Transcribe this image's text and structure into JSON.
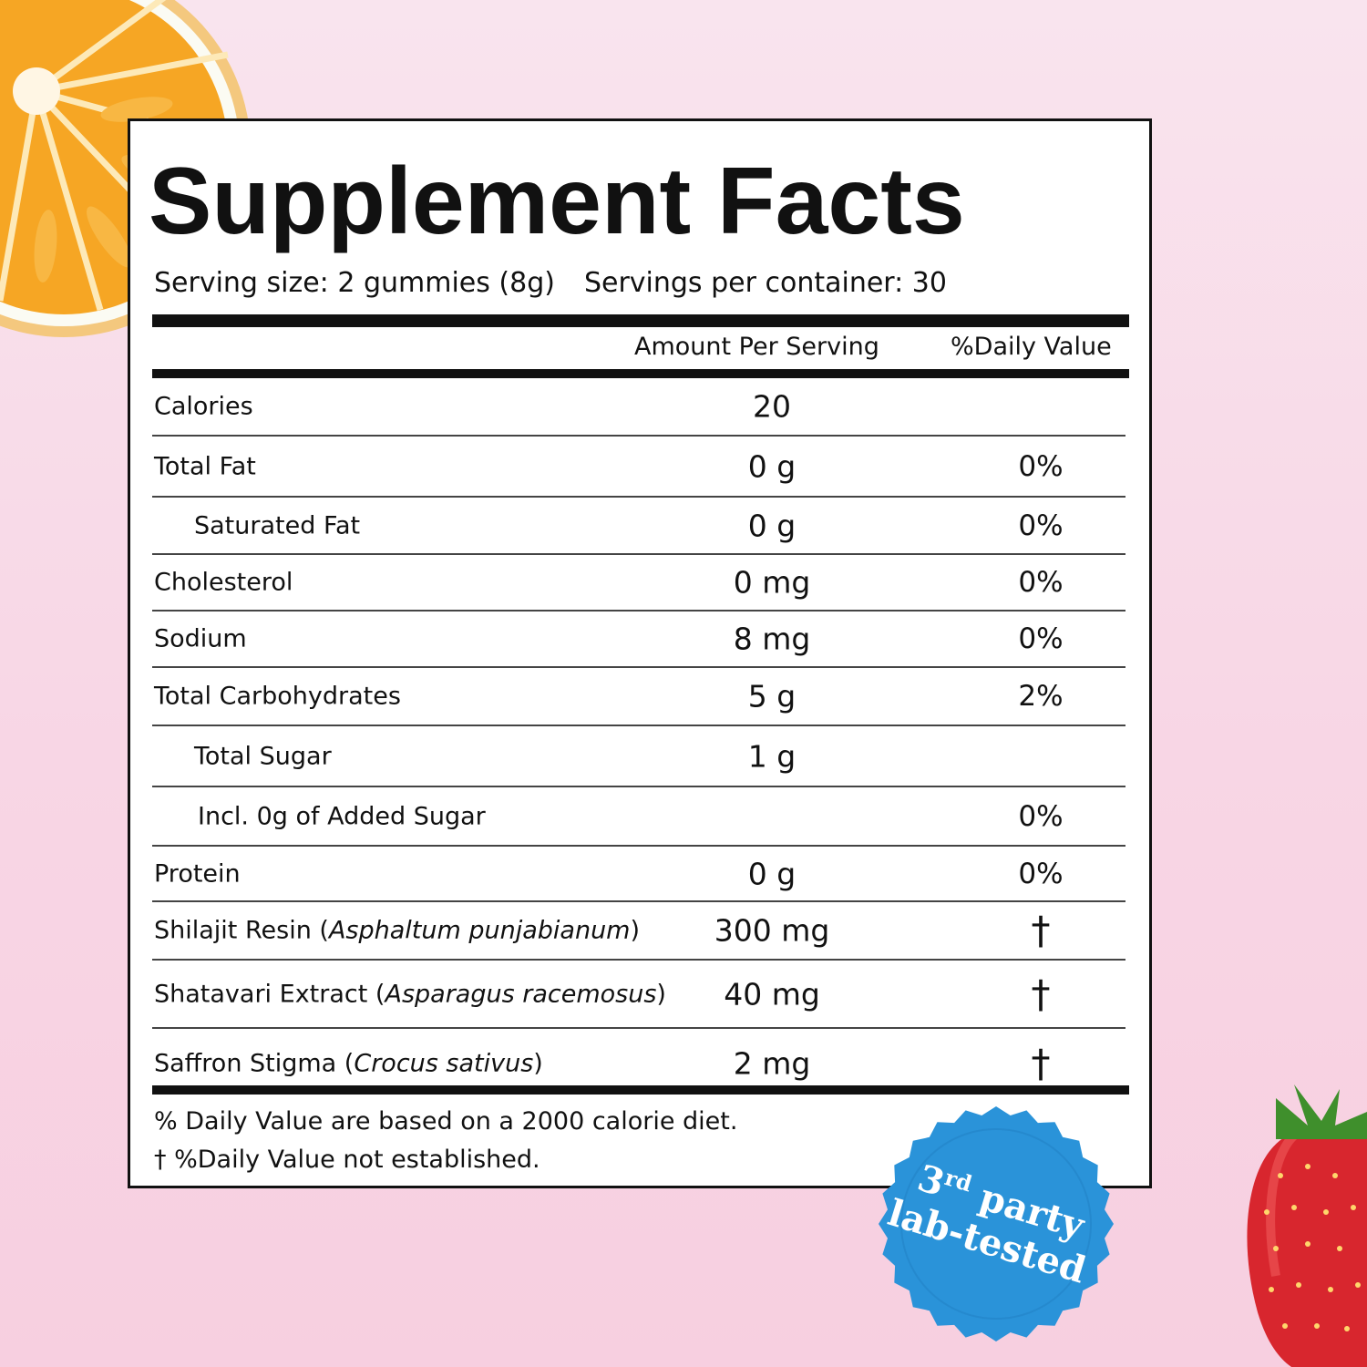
{
  "label": {
    "title": "Supplement Facts",
    "serving_size": "Serving size: 2 gummies (8g)",
    "servings_per_container": "Servings per container: 30",
    "col_amount": "Amount Per Serving",
    "col_daily_value": "%Daily Value",
    "rows": [
      {
        "name": "Calories",
        "amount": "20",
        "dv": ""
      },
      {
        "name": "Total Fat",
        "amount": "0 g",
        "dv": "0%"
      },
      {
        "name": "Saturated Fat",
        "amount": "0 g",
        "dv": "0%"
      },
      {
        "name": "Cholesterol",
        "amount": "0 mg",
        "dv": "0%"
      },
      {
        "name": "Sodium",
        "amount": "8 mg",
        "dv": "0%"
      },
      {
        "name": "Total Carbohydrates",
        "amount": "5 g",
        "dv": "2%"
      },
      {
        "name": "Total Sugar",
        "amount": "1 g",
        "dv": ""
      },
      {
        "name": "Incl. 0g of Added Sugar",
        "amount": "",
        "dv": "0%"
      },
      {
        "name": "Protein",
        "amount": "0 g",
        "dv": "0%"
      },
      {
        "name": "Shilajit Resin (",
        "sci": "Asphaltum punjabianum",
        "close": ")",
        "amount": "300 mg",
        "dv": "†"
      },
      {
        "name": "Shatavari Extract (",
        "sci": "Asparagus racemosus",
        "close": ")",
        "amount": "40 mg",
        "dv": "†"
      },
      {
        "name": "Saffron Stigma (",
        "sci": "Crocus sativus",
        "close": ")",
        "amount": "2 mg",
        "dv": "†"
      }
    ],
    "footnote_1": "% Daily Value are based on a 2000 calorie diet.",
    "footnote_2": "† %Daily Value not established."
  },
  "badge": {
    "line1_main": "3",
    "line1_sup": "rd",
    "line1_rest": " party",
    "line2": "lab-tested",
    "color": "#2a93d9"
  },
  "decor": {
    "fruit_left": "orange-slice",
    "fruit_right": "strawberry"
  }
}
